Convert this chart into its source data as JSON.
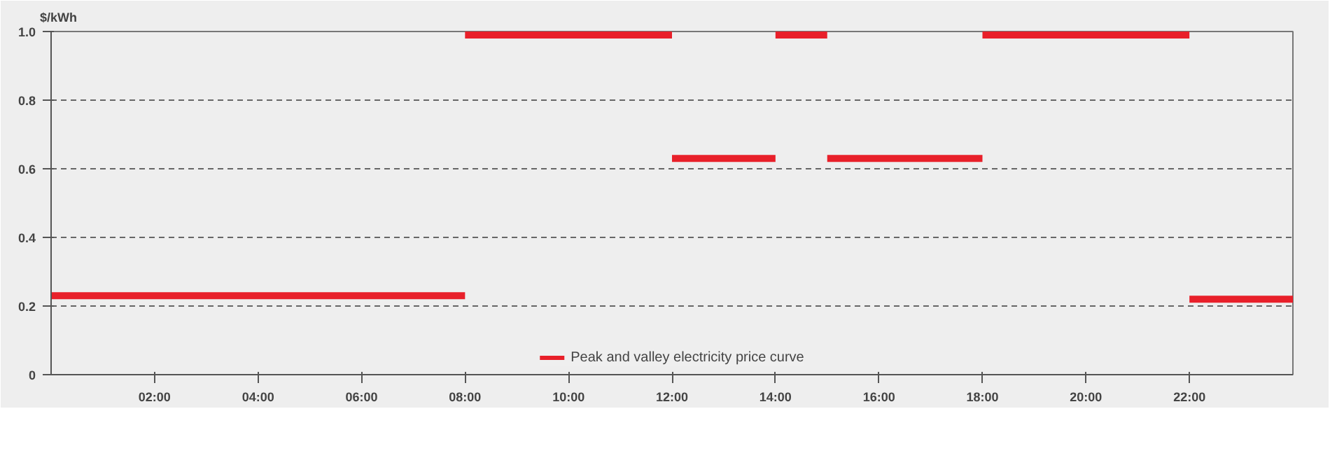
{
  "chart_data": {
    "type": "step",
    "ylabel": "$/kWh",
    "x": [
      0,
      8,
      12,
      14,
      15,
      18,
      22,
      24
    ],
    "series": [
      {
        "name": "Peak and valley electricity price curve",
        "color": "#e8202a",
        "values": [
          0.23,
          0.99,
          0.63,
          0.99,
          0.63,
          0.99,
          0.22,
          0.22
        ]
      }
    ],
    "xlim": [
      0,
      24
    ],
    "ylim": [
      0,
      1.0
    ],
    "xticks": [
      {
        "value": 2,
        "label": "02:00"
      },
      {
        "value": 4,
        "label": "04:00"
      },
      {
        "value": 6,
        "label": "06:00"
      },
      {
        "value": 8,
        "label": "08:00"
      },
      {
        "value": 10,
        "label": "10:00"
      },
      {
        "value": 12,
        "label": "12:00"
      },
      {
        "value": 14,
        "label": "14:00"
      },
      {
        "value": 16,
        "label": "16:00"
      },
      {
        "value": 18,
        "label": "18:00"
      },
      {
        "value": 20,
        "label": "20:00"
      },
      {
        "value": 22,
        "label": "22:00"
      }
    ],
    "yticks": [
      0,
      0.2,
      0.4,
      0.6,
      0.8,
      {
        "value": 1,
        "label": "1.0"
      }
    ],
    "grid": "y",
    "legend": "bottom",
    "line_style": "solid",
    "marker": "none"
  }
}
